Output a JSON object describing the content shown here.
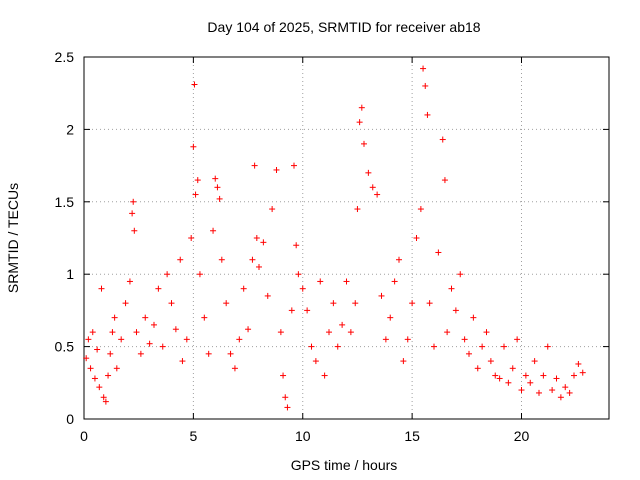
{
  "chart_data": {
    "type": "scatter",
    "title": "Day 104 of 2025, SRMTID for receiver ab18",
    "xlabel": "GPS time / hours",
    "ylabel": "SRMTID / TECUs",
    "xlim": [
      0,
      24
    ],
    "ylim": [
      0,
      2.5
    ],
    "xticks": [
      0,
      5,
      10,
      15,
      20
    ],
    "xtick_labels": [
      "0",
      "5",
      "10",
      "15",
      "20"
    ],
    "yticks": [
      0,
      0.5,
      1,
      1.5,
      2,
      2.5
    ],
    "ytick_labels": [
      "0",
      "0.5",
      "1",
      "1.5",
      "2",
      "2.5"
    ],
    "grid": true,
    "marker": "+",
    "color": "#ff0000",
    "series": [
      {
        "name": "SRMTID",
        "points": [
          [
            0.1,
            0.42
          ],
          [
            0.2,
            0.55
          ],
          [
            0.3,
            0.35
          ],
          [
            0.4,
            0.6
          ],
          [
            0.5,
            0.28
          ],
          [
            0.6,
            0.48
          ],
          [
            0.7,
            0.22
          ],
          [
            0.8,
            0.9
          ],
          [
            0.9,
            0.15
          ],
          [
            1.0,
            0.12
          ],
          [
            1.1,
            0.3
          ],
          [
            1.2,
            0.45
          ],
          [
            1.3,
            0.6
          ],
          [
            1.4,
            0.7
          ],
          [
            1.5,
            0.35
          ],
          [
            1.7,
            0.55
          ],
          [
            1.9,
            0.8
          ],
          [
            2.1,
            0.95
          ],
          [
            2.2,
            1.42
          ],
          [
            2.25,
            1.5
          ],
          [
            2.3,
            1.3
          ],
          [
            2.4,
            0.6
          ],
          [
            2.6,
            0.45
          ],
          [
            2.8,
            0.7
          ],
          [
            3.0,
            0.52
          ],
          [
            3.2,
            0.65
          ],
          [
            3.4,
            0.9
          ],
          [
            3.6,
            0.5
          ],
          [
            3.8,
            1.0
          ],
          [
            4.0,
            0.8
          ],
          [
            4.2,
            0.62
          ],
          [
            4.4,
            1.1
          ],
          [
            4.5,
            0.4
          ],
          [
            4.7,
            0.55
          ],
          [
            4.9,
            1.25
          ],
          [
            5.0,
            1.88
          ],
          [
            5.05,
            2.31
          ],
          [
            5.1,
            1.55
          ],
          [
            5.2,
            1.65
          ],
          [
            5.3,
            1.0
          ],
          [
            5.5,
            0.7
          ],
          [
            5.7,
            0.45
          ],
          [
            5.9,
            1.3
          ],
          [
            6.0,
            1.66
          ],
          [
            6.1,
            1.6
          ],
          [
            6.2,
            1.52
          ],
          [
            6.3,
            1.1
          ],
          [
            6.5,
            0.8
          ],
          [
            6.7,
            0.45
          ],
          [
            6.9,
            0.35
          ],
          [
            7.1,
            0.55
          ],
          [
            7.3,
            0.9
          ],
          [
            7.5,
            0.62
          ],
          [
            7.7,
            1.1
          ],
          [
            7.8,
            1.75
          ],
          [
            7.9,
            1.25
          ],
          [
            8.0,
            1.05
          ],
          [
            8.2,
            1.22
          ],
          [
            8.4,
            0.85
          ],
          [
            8.6,
            1.45
          ],
          [
            8.8,
            1.72
          ],
          [
            9.0,
            0.6
          ],
          [
            9.1,
            0.3
          ],
          [
            9.2,
            0.15
          ],
          [
            9.3,
            0.08
          ],
          [
            9.5,
            0.75
          ],
          [
            9.6,
            1.75
          ],
          [
            9.7,
            1.2
          ],
          [
            9.8,
            1.0
          ],
          [
            10.0,
            0.9
          ],
          [
            10.2,
            0.75
          ],
          [
            10.4,
            0.5
          ],
          [
            10.6,
            0.4
          ],
          [
            10.8,
            0.95
          ],
          [
            11.0,
            0.3
          ],
          [
            11.2,
            0.6
          ],
          [
            11.4,
            0.8
          ],
          [
            11.6,
            0.5
          ],
          [
            11.8,
            0.65
          ],
          [
            12.0,
            0.95
          ],
          [
            12.2,
            0.6
          ],
          [
            12.4,
            0.8
          ],
          [
            12.5,
            1.45
          ],
          [
            12.6,
            2.05
          ],
          [
            12.7,
            2.15
          ],
          [
            12.8,
            1.9
          ],
          [
            13.0,
            1.7
          ],
          [
            13.2,
            1.6
          ],
          [
            13.4,
            1.55
          ],
          [
            13.6,
            0.85
          ],
          [
            13.8,
            0.55
          ],
          [
            14.0,
            0.7
          ],
          [
            14.2,
            0.95
          ],
          [
            14.4,
            1.1
          ],
          [
            14.6,
            0.4
          ],
          [
            14.8,
            0.55
          ],
          [
            15.0,
            0.8
          ],
          [
            15.2,
            1.25
          ],
          [
            15.4,
            1.45
          ],
          [
            15.5,
            2.42
          ],
          [
            15.6,
            2.3
          ],
          [
            15.7,
            2.1
          ],
          [
            15.8,
            0.8
          ],
          [
            16.0,
            0.5
          ],
          [
            16.2,
            1.15
          ],
          [
            16.4,
            1.93
          ],
          [
            16.5,
            1.65
          ],
          [
            16.6,
            0.6
          ],
          [
            16.8,
            0.9
          ],
          [
            17.0,
            0.75
          ],
          [
            17.2,
            1.0
          ],
          [
            17.4,
            0.55
          ],
          [
            17.6,
            0.45
          ],
          [
            17.8,
            0.7
          ],
          [
            18.0,
            0.35
          ],
          [
            18.2,
            0.5
          ],
          [
            18.4,
            0.6
          ],
          [
            18.6,
            0.4
          ],
          [
            18.8,
            0.3
          ],
          [
            19.0,
            0.28
          ],
          [
            19.2,
            0.5
          ],
          [
            19.4,
            0.25
          ],
          [
            19.6,
            0.35
          ],
          [
            19.8,
            0.55
          ],
          [
            20.0,
            0.2
          ],
          [
            20.2,
            0.3
          ],
          [
            20.4,
            0.25
          ],
          [
            20.6,
            0.4
          ],
          [
            20.8,
            0.18
          ],
          [
            21.0,
            0.3
          ],
          [
            21.2,
            0.5
          ],
          [
            21.4,
            0.2
          ],
          [
            21.6,
            0.28
          ],
          [
            21.8,
            0.15
          ],
          [
            22.0,
            0.22
          ],
          [
            22.2,
            0.18
          ],
          [
            22.4,
            0.3
          ],
          [
            22.6,
            0.38
          ],
          [
            22.8,
            0.32
          ]
        ]
      }
    ]
  }
}
